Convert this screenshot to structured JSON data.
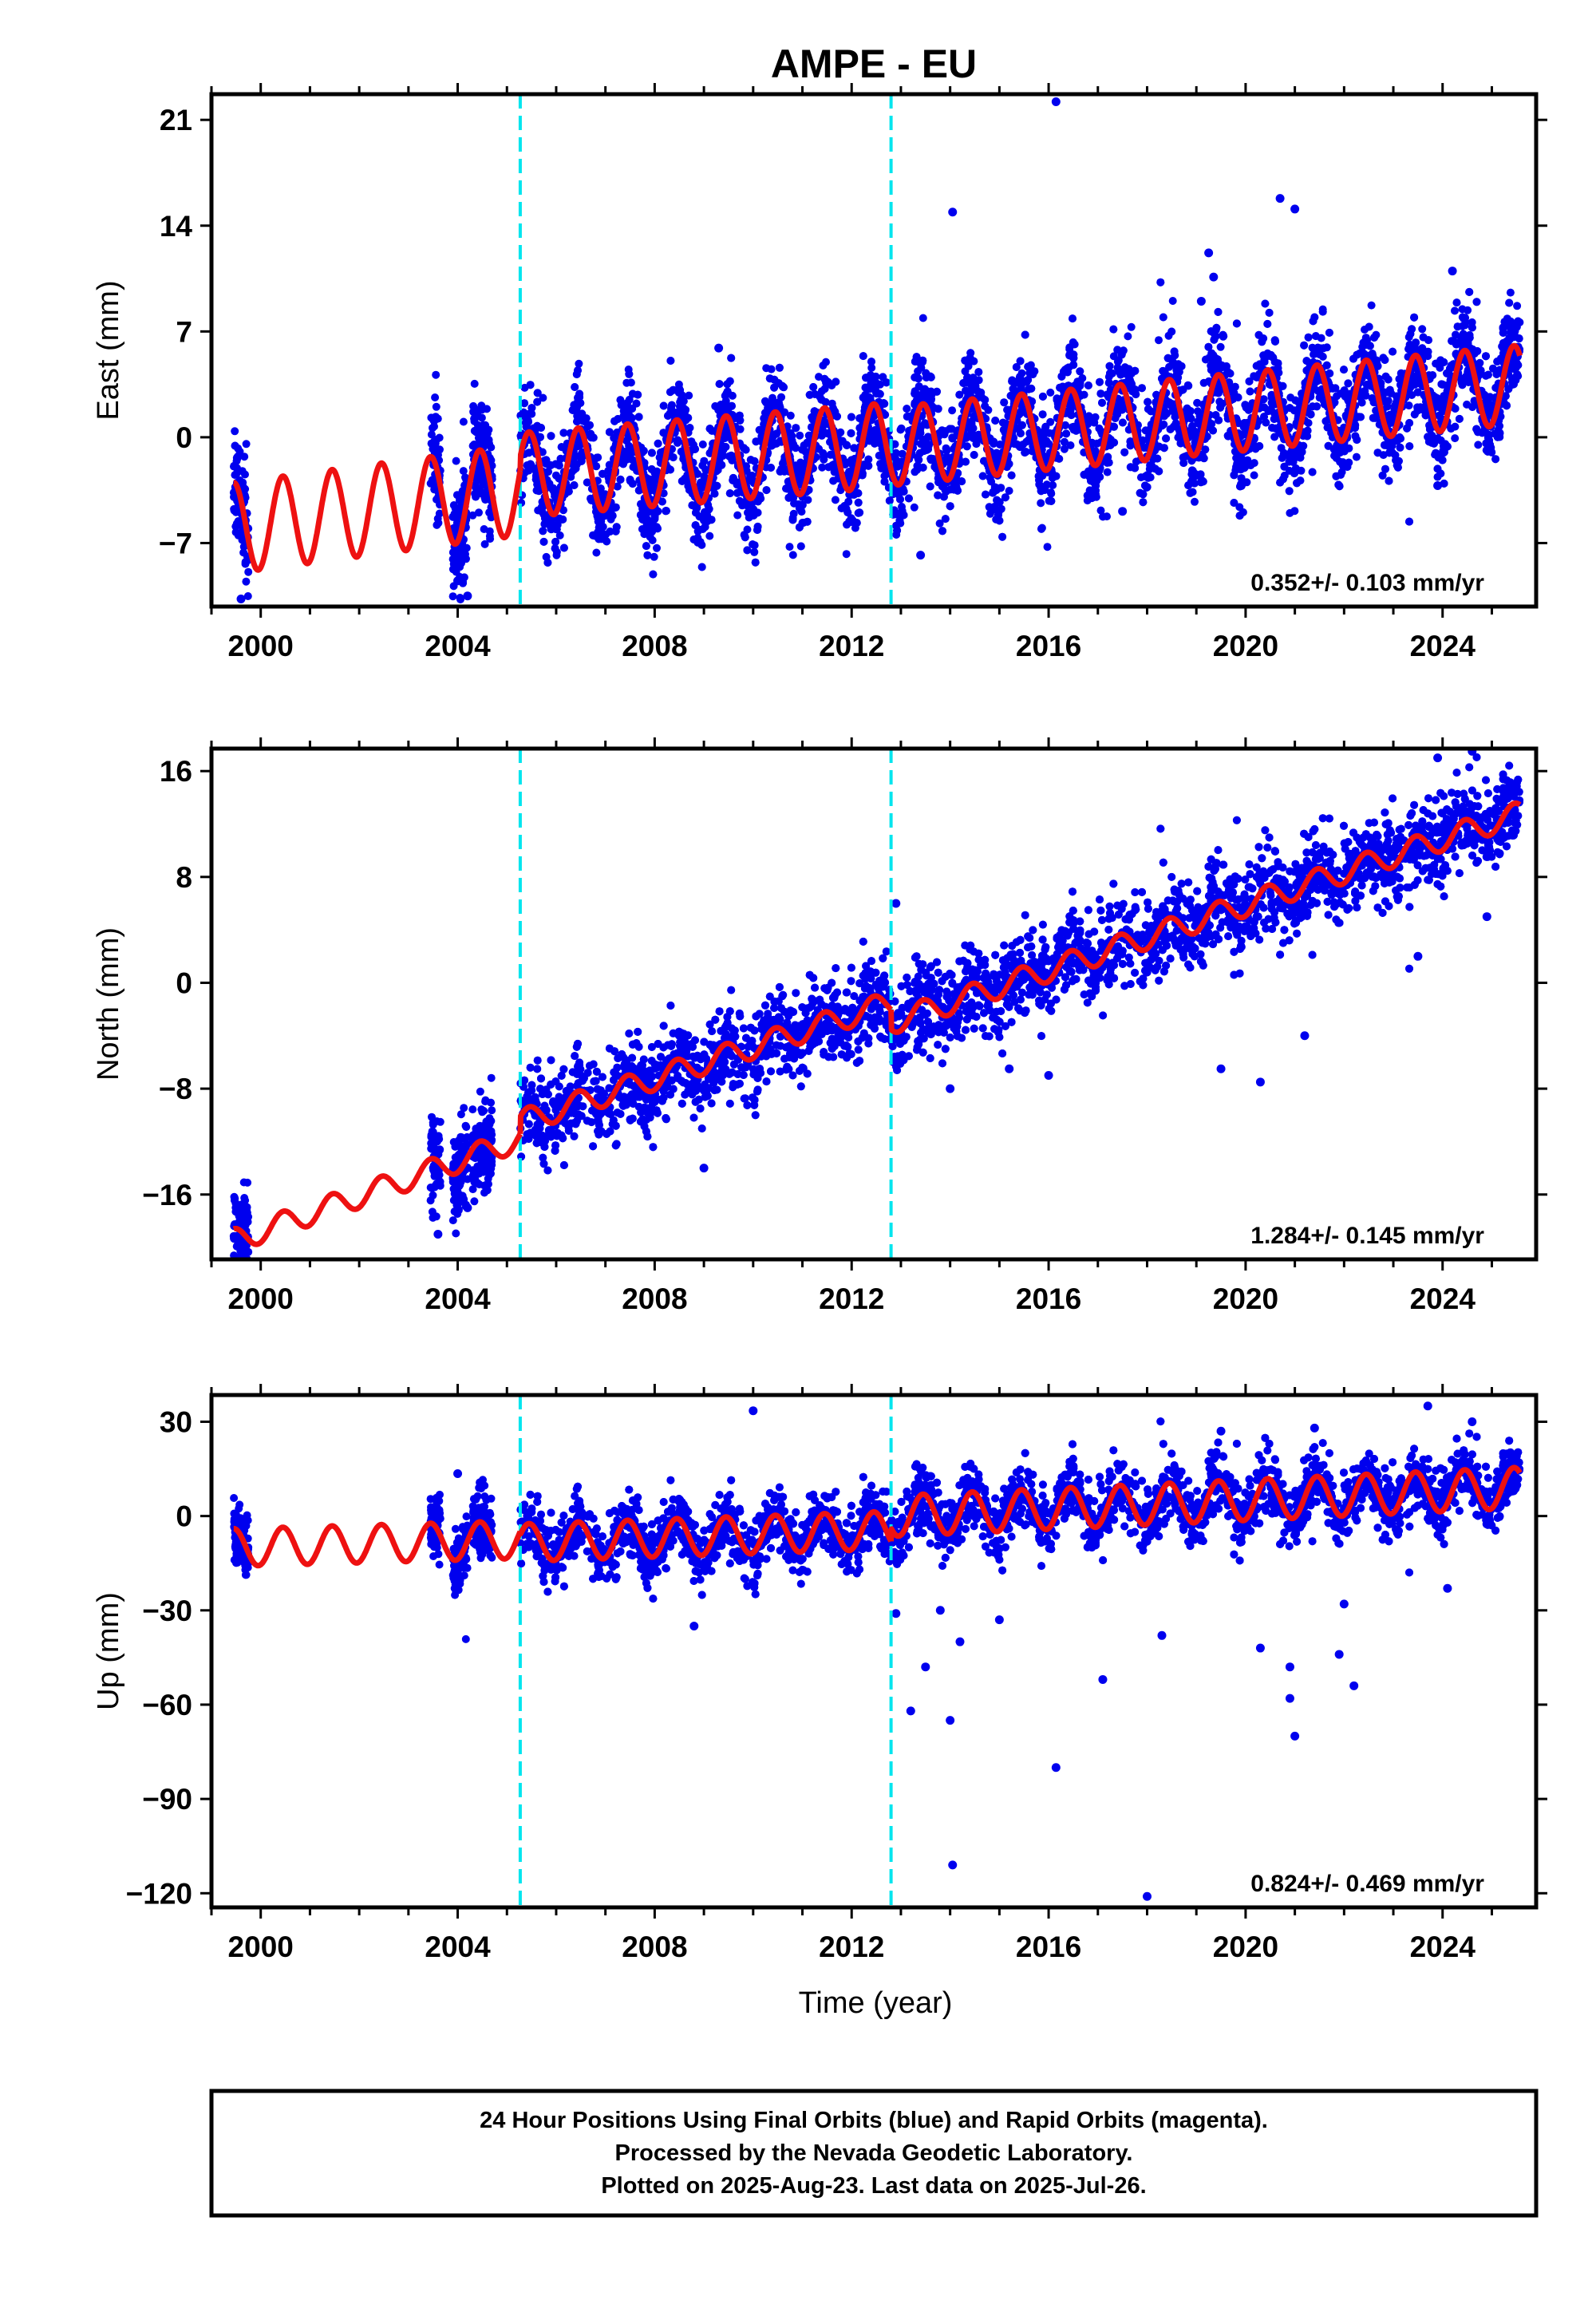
{
  "title": "AMPE - EU",
  "xlabel": "Time (year)",
  "colors": {
    "data": "#0000ee",
    "model": "#ee1111",
    "break": "#00e5ee",
    "frame": "#000000"
  },
  "chart_data": [
    {
      "type": "scatter",
      "component": "East",
      "ylabel": "East (mm)",
      "rate_label": "0.352+/- 0.103 mm/yr",
      "xlim": [
        1999.0,
        2025.9
      ],
      "ylim": [
        -11.2,
        22.7
      ],
      "yticks": [
        21,
        14,
        7,
        0,
        -7
      ],
      "xticks": [
        2000,
        2004,
        2008,
        2012,
        2016,
        2020,
        2024
      ],
      "breaks": [
        2005.27,
        2012.8
      ],
      "model": {
        "segments": [
          {
            "x0": 1999.45,
            "x1": 2005.27,
            "level_start": -6.0,
            "level_end": -3.5,
            "amplitude": 3.0
          },
          {
            "x0": 2005.27,
            "x1": 2012.8,
            "level_start": -2.5,
            "level_end": -0.5,
            "amplitude": 2.8
          },
          {
            "x0": 2012.8,
            "x1": 2025.57,
            "level_start": -0.6,
            "level_end": 3.5,
            "amplitude": 2.6
          }
        ]
      },
      "scatter_spread": 1.7,
      "data_spans": [
        [
          1999.45,
          1999.75
        ],
        [
          2003.45,
          2003.65
        ],
        [
          2003.9,
          2004.2
        ],
        [
          2004.3,
          2004.7
        ],
        [
          2005.27,
          2025.57
        ]
      ],
      "outliers": [
        [
          2016.15,
          22.2
        ],
        [
          2014.05,
          14.9
        ],
        [
          2020.7,
          15.8
        ],
        [
          2021.0,
          15.1
        ],
        [
          2019.25,
          12.2
        ],
        [
          2019.35,
          10.6
        ],
        [
          2024.2,
          11.0
        ],
        [
          2009.3,
          5.9
        ],
        [
          2004.2,
          -10.5
        ],
        [
          2013.4,
          -7.8
        ],
        [
          2004.0,
          -9.5
        ],
        [
          1999.6,
          -10.7
        ],
        [
          2023.9,
          -3.2
        ],
        [
          2017.5,
          -4.9
        ],
        [
          2019.1,
          9.0
        ]
      ]
    },
    {
      "type": "scatter",
      "component": "North",
      "ylabel": "North (mm)",
      "rate_label": "1.284+/- 0.145 mm/yr",
      "xlim": [
        1999.0,
        2025.9
      ],
      "ylim": [
        -20.9,
        17.7
      ],
      "yticks": [
        16,
        8,
        0,
        -8,
        -16
      ],
      "xticks": [
        2000,
        2004,
        2008,
        2012,
        2016,
        2020,
        2024
      ],
      "breaks": [
        2005.27,
        2012.8
      ],
      "model": {
        "segments": [
          {
            "x0": 1999.45,
            "x1": 2005.27,
            "level_start": -19.5,
            "level_end": -11.8,
            "amplitude": 0.9
          },
          {
            "x0": 2005.27,
            "x1": 2012.8,
            "level_start": -10.5,
            "level_end": -1.5,
            "amplitude": 0.9
          },
          {
            "x0": 2012.8,
            "x1": 2025.57,
            "level_start": -3.0,
            "level_end": 12.8,
            "amplitude": 0.9
          }
        ]
      },
      "scatter_spread": 1.6,
      "data_spans": [
        [
          1999.45,
          1999.75
        ],
        [
          2003.45,
          2003.65
        ],
        [
          2003.9,
          2004.2
        ],
        [
          2004.3,
          2004.7
        ],
        [
          2005.27,
          2025.57
        ]
      ],
      "outliers": [
        [
          2023.9,
          17.0
        ],
        [
          2024.6,
          17.5
        ],
        [
          2023.5,
          2.0
        ],
        [
          2019.5,
          -6.5
        ],
        [
          2020.3,
          -7.5
        ],
        [
          2009.0,
          -14.0
        ],
        [
          2012.9,
          6.0
        ],
        [
          2014.0,
          -8.0
        ],
        [
          2015.2,
          -6.5
        ],
        [
          2016.0,
          -7.0
        ],
        [
          2021.2,
          -4.0
        ],
        [
          2024.9,
          5.0
        ],
        [
          2003.6,
          -19.0
        ],
        [
          2004.2,
          -17.0
        ]
      ]
    },
    {
      "type": "scatter",
      "component": "Up",
      "ylabel": "Up (mm)",
      "rate_label": "0.824+/- 0.469 mm/yr",
      "xlim": [
        1999.0,
        2025.9
      ],
      "ylim": [
        -124.5,
        38.5
      ],
      "yticks": [
        30,
        0,
        -30,
        -60,
        -90,
        -120
      ],
      "xticks": [
        2000,
        2004,
        2008,
        2012,
        2016,
        2020,
        2024
      ],
      "breaks": [
        2005.27,
        2012.8
      ],
      "model": {
        "segments": [
          {
            "x0": 1999.45,
            "x1": 2005.27,
            "level_start": -10.0,
            "level_end": -7.5,
            "amplitude": 6.0
          },
          {
            "x0": 2005.27,
            "x1": 2012.8,
            "level_start": -8.5,
            "level_end": -4.5,
            "amplitude": 6.0
          },
          {
            "x0": 2012.8,
            "x1": 2025.57,
            "level_start": 0.0,
            "level_end": 9.0,
            "amplitude": 6.5
          }
        ]
      },
      "scatter_spread": 5.0,
      "data_spans": [
        [
          1999.45,
          1999.75
        ],
        [
          2003.45,
          2003.65
        ],
        [
          2003.9,
          2004.2
        ],
        [
          2004.3,
          2004.7
        ],
        [
          2005.27,
          2025.57
        ]
      ],
      "outliers": [
        [
          2010.0,
          33.5
        ],
        [
          2013.5,
          -48.0
        ],
        [
          2013.2,
          -62.0
        ],
        [
          2014.0,
          -65.0
        ],
        [
          2014.05,
          -111.0
        ],
        [
          2016.15,
          -80.0
        ],
        [
          2017.1,
          -52.0
        ],
        [
          2018.0,
          -121.0
        ],
        [
          2020.3,
          -42.0
        ],
        [
          2020.9,
          -58.0
        ],
        [
          2021.0,
          -70.0
        ],
        [
          2021.9,
          -44.0
        ],
        [
          2022.2,
          -54.0
        ],
        [
          2022.0,
          -28.0
        ],
        [
          2023.7,
          35.0
        ],
        [
          2024.1,
          -23.0
        ],
        [
          2012.9,
          -31.0
        ],
        [
          2013.8,
          -30.0
        ],
        [
          2008.8,
          -35.0
        ],
        [
          2015.0,
          -33.0
        ],
        [
          2020.9,
          -48.0
        ],
        [
          2004.0,
          13.5
        ],
        [
          2019.5,
          27.0
        ],
        [
          2021.4,
          28.0
        ],
        [
          2024.6,
          30.0
        ],
        [
          2014.2,
          -40.0
        ],
        [
          2018.3,
          -38.0
        ]
      ]
    }
  ],
  "footer": {
    "line1": "24 Hour Positions Using Final Orbits (blue) and Rapid Orbits (magenta).",
    "line2": "Processed by the Nevada Geodetic Laboratory.",
    "line3": "Plotted on 2025-Aug-23. Last data on 2025-Jul-26."
  }
}
